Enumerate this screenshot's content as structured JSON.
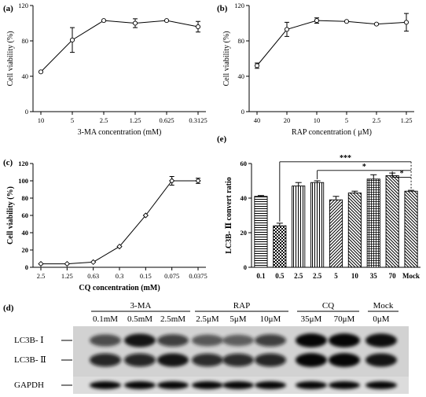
{
  "panels": {
    "a": {
      "label": "(a)"
    },
    "b": {
      "label": "(b)"
    },
    "c": {
      "label": "(c)"
    },
    "d": {
      "label": "(d)"
    },
    "e": {
      "label": "(e)"
    }
  },
  "chart_data": [
    {
      "panel": "a",
      "type": "line",
      "xlabel": "3-MA concentration (mM)",
      "ylabel": "Cell viability (%)",
      "categories": [
        "10",
        "5",
        "2.5",
        "1.25",
        "0.625",
        "0.3125"
      ],
      "values": [
        45,
        81,
        103,
        100,
        103,
        96
      ],
      "errors": [
        0,
        14,
        0,
        5,
        0,
        6
      ],
      "ylim": [
        0,
        120
      ],
      "yticks": [
        0,
        40,
        80,
        120
      ],
      "marker": "circle"
    },
    {
      "panel": "b",
      "type": "line",
      "xlabel": "RAP concentration ( μM)",
      "ylabel": "Cell viability (%)",
      "categories": [
        "40",
        "20",
        "10",
        "5",
        "2.5",
        "1.25"
      ],
      "values": [
        52,
        93,
        103,
        102,
        99,
        101
      ],
      "errors": [
        3,
        8,
        3,
        0,
        0,
        10
      ],
      "ylim": [
        0,
        120
      ],
      "yticks": [
        0,
        40,
        80,
        120
      ],
      "marker": "circle"
    },
    {
      "panel": "c",
      "type": "line",
      "xlabel": "CQ concentration (mM)",
      "ylabel": "Cell viability (%)",
      "categories": [
        "2.5",
        "1.25",
        "0.63",
        "0.3",
        "0.15",
        "0.075",
        "0.0375"
      ],
      "values": [
        4,
        4,
        6,
        24,
        60,
        100,
        100
      ],
      "errors": [
        0,
        0,
        0,
        0,
        0,
        5,
        3
      ],
      "ylim": [
        0,
        120
      ],
      "yticks": [
        0,
        20,
        40,
        60,
        80,
        100,
        120
      ],
      "marker": "diamond"
    },
    {
      "panel": "e",
      "type": "bar",
      "ylabel": "LC3B- Ⅱ convert ratio",
      "categories": [
        "0.1",
        "0.5",
        "2.5",
        "2.5",
        "5",
        "10",
        "35",
        "70",
        "Mock"
      ],
      "values": [
        41,
        24,
        47,
        49,
        39,
        43,
        51,
        53,
        44
      ],
      "errors": [
        0.5,
        1.5,
        2,
        1,
        2,
        1,
        2.5,
        1.5,
        0.5
      ],
      "patterns": [
        "hlines",
        "checker",
        "vlines",
        "vlines",
        "diag-right",
        "diag-left",
        "grid",
        "diag-left",
        "diag-left"
      ],
      "ylim": [
        0,
        60
      ],
      "yticks": [
        0,
        20,
        40,
        60
      ],
      "significance": [
        {
          "from": 1,
          "to": 8,
          "label": "***"
        },
        {
          "from": 3,
          "to": 8,
          "label": "*"
        },
        {
          "from": 7,
          "to": 8,
          "label": "*"
        }
      ]
    }
  ],
  "blot": {
    "groups": [
      {
        "label": "3-MA",
        "lanes": [
          "0.1mM",
          "0.5mM",
          "2.5mM"
        ]
      },
      {
        "label": "RAP",
        "lanes": [
          "2.5μM",
          "5μM",
          "10μM"
        ]
      },
      {
        "label": "CQ",
        "lanes": [
          "35μM",
          "70μM"
        ]
      },
      {
        "label": "Mock",
        "lanes": [
          "0μM"
        ]
      }
    ],
    "rows": [
      {
        "label": "LC3B- Ⅰ",
        "intensity": [
          0.55,
          0.85,
          0.6,
          0.45,
          0.4,
          0.6,
          0.95,
          0.95,
          0.9
        ]
      },
      {
        "label": "LC3B- Ⅱ",
        "intensity": [
          0.8,
          0.8,
          0.85,
          0.75,
          0.75,
          0.8,
          0.95,
          0.95,
          0.85
        ]
      },
      {
        "label": "GAPDH",
        "intensity": [
          0.95,
          0.95,
          0.95,
          0.95,
          0.95,
          0.95,
          0.95,
          0.95,
          0.95
        ]
      }
    ]
  }
}
